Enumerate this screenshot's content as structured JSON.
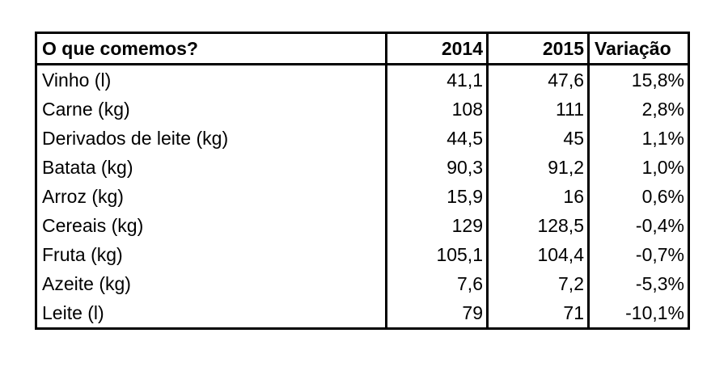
{
  "table": {
    "headers": [
      "O que comemos?",
      "2014",
      "2015",
      "Variação"
    ],
    "rows": [
      {
        "item": "Vinho (l)",
        "y2014": "41,1",
        "y2015": "47,6",
        "variation": "15,8%"
      },
      {
        "item": "Carne (kg)",
        "y2014": "108",
        "y2015": "111",
        "variation": "2,8%"
      },
      {
        "item": "Derivados de leite (kg)",
        "y2014": "44,5",
        "y2015": "45",
        "variation": "1,1%"
      },
      {
        "item": "Batata (kg)",
        "y2014": "90,3",
        "y2015": "91,2",
        "variation": "1,0%"
      },
      {
        "item": "Arroz (kg)",
        "y2014": "15,9",
        "y2015": "16",
        "variation": "0,6%"
      },
      {
        "item": "Cereais (kg)",
        "y2014": "129",
        "y2015": "128,5",
        "variation": "-0,4%"
      },
      {
        "item": "Fruta (kg)",
        "y2014": "105,1",
        "y2015": "104,4",
        "variation": "-0,7%"
      },
      {
        "item": "Azeite (kg)",
        "y2014": "7,6",
        "y2015": "7,2",
        "variation": "-5,3%"
      },
      {
        "item": "Leite (l)",
        "y2014": "79",
        "y2015": "71",
        "variation": "-10,1%"
      }
    ]
  }
}
